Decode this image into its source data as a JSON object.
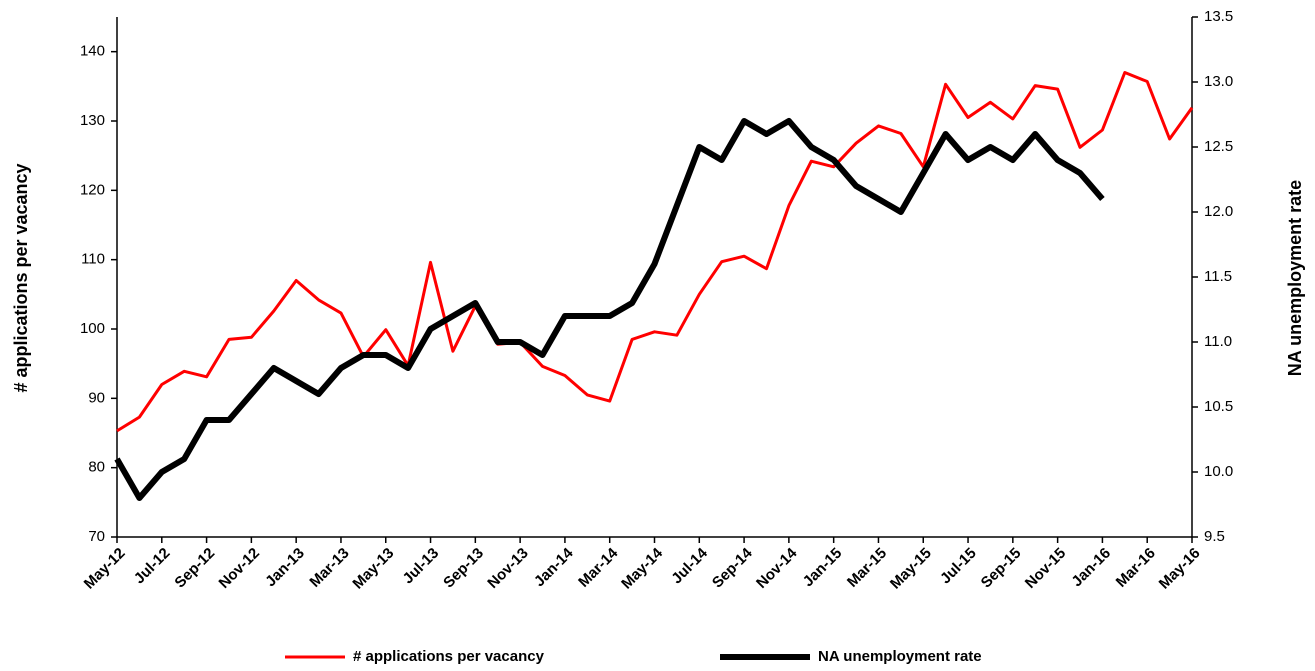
{
  "chart_data": {
    "type": "line",
    "y_label": "# applications per vacancy",
    "y2_label": "NA unemployment rate",
    "categories": [
      "May-12",
      null,
      "Jul-12",
      null,
      "Sep-12",
      null,
      "Nov-12",
      null,
      "Jan-13",
      null,
      "Mar-13",
      null,
      "May-13",
      null,
      "Jul-13",
      null,
      "Sep-13",
      null,
      "Nov-13",
      null,
      "Jan-14",
      null,
      "Mar-14",
      null,
      "May-14",
      null,
      "Jul-14",
      null,
      "Sep-14",
      null,
      "Nov-14",
      null,
      "Jan-15",
      null,
      "Mar-15",
      null,
      "May-15",
      null,
      "Jul-15",
      null,
      "Sep-15",
      null,
      "Nov-15",
      null,
      "Jan-16",
      null,
      "Mar-16",
      null,
      "May-16"
    ],
    "series": [
      {
        "name": "# applications per vacancy",
        "color": "#ff0000",
        "width": 3,
        "axis": "y",
        "values": [
          85.3,
          87.3,
          92,
          93.9,
          93.1,
          98.5,
          98.8,
          102.6,
          107,
          104.2,
          102.3,
          96,
          99.9,
          94.7,
          109.6,
          96.8,
          103.3,
          97.8,
          98.1,
          94.6,
          93.3,
          90.5,
          89.6,
          98.5,
          99.6,
          99.1,
          105,
          109.7,
          110.5,
          108.7,
          117.8,
          124.2,
          123.4,
          126.8,
          129.3,
          128.2,
          123.4,
          135.3,
          130.5,
          132.7,
          130.3,
          135.1,
          134.6,
          126.2,
          128.7,
          137,
          135.7,
          127.4,
          131.9
        ]
      },
      {
        "name": "NA unemployment rate",
        "color": "#000000",
        "width": 6,
        "axis": "y2",
        "values": [
          10.1,
          9.8,
          10.0,
          10.1,
          10.4,
          10.4,
          10.6,
          10.8,
          10.7,
          10.6,
          10.8,
          10.9,
          10.9,
          10.8,
          11.1,
          11.2,
          11.3,
          11.0,
          11.0,
          10.9,
          11.2,
          11.2,
          11.2,
          11.3,
          11.6,
          12.05,
          12.5,
          12.4,
          12.7,
          12.6,
          12.7,
          12.5,
          12.4,
          12.2,
          12.1,
          12.0,
          12.3,
          12.6,
          12.4,
          12.5,
          12.4,
          12.6,
          12.4,
          12.3,
          12.1,
          null,
          null,
          null,
          null
        ]
      }
    ],
    "ylim": [
      70,
      145
    ],
    "yticks": [
      70,
      80,
      90,
      100,
      110,
      120,
      130,
      140
    ],
    "y2lim": [
      9.5,
      13.5
    ],
    "y2ticks": [
      9.5,
      {
        "value": 10,
        "label": "10.0"
      },
      10.5,
      {
        "value": 11,
        "label": "11.0"
      },
      11.5,
      {
        "value": 12,
        "label": "12.0"
      },
      12.5,
      {
        "value": 13,
        "label": "13.0"
      },
      13.5
    ],
    "grid": false
  }
}
